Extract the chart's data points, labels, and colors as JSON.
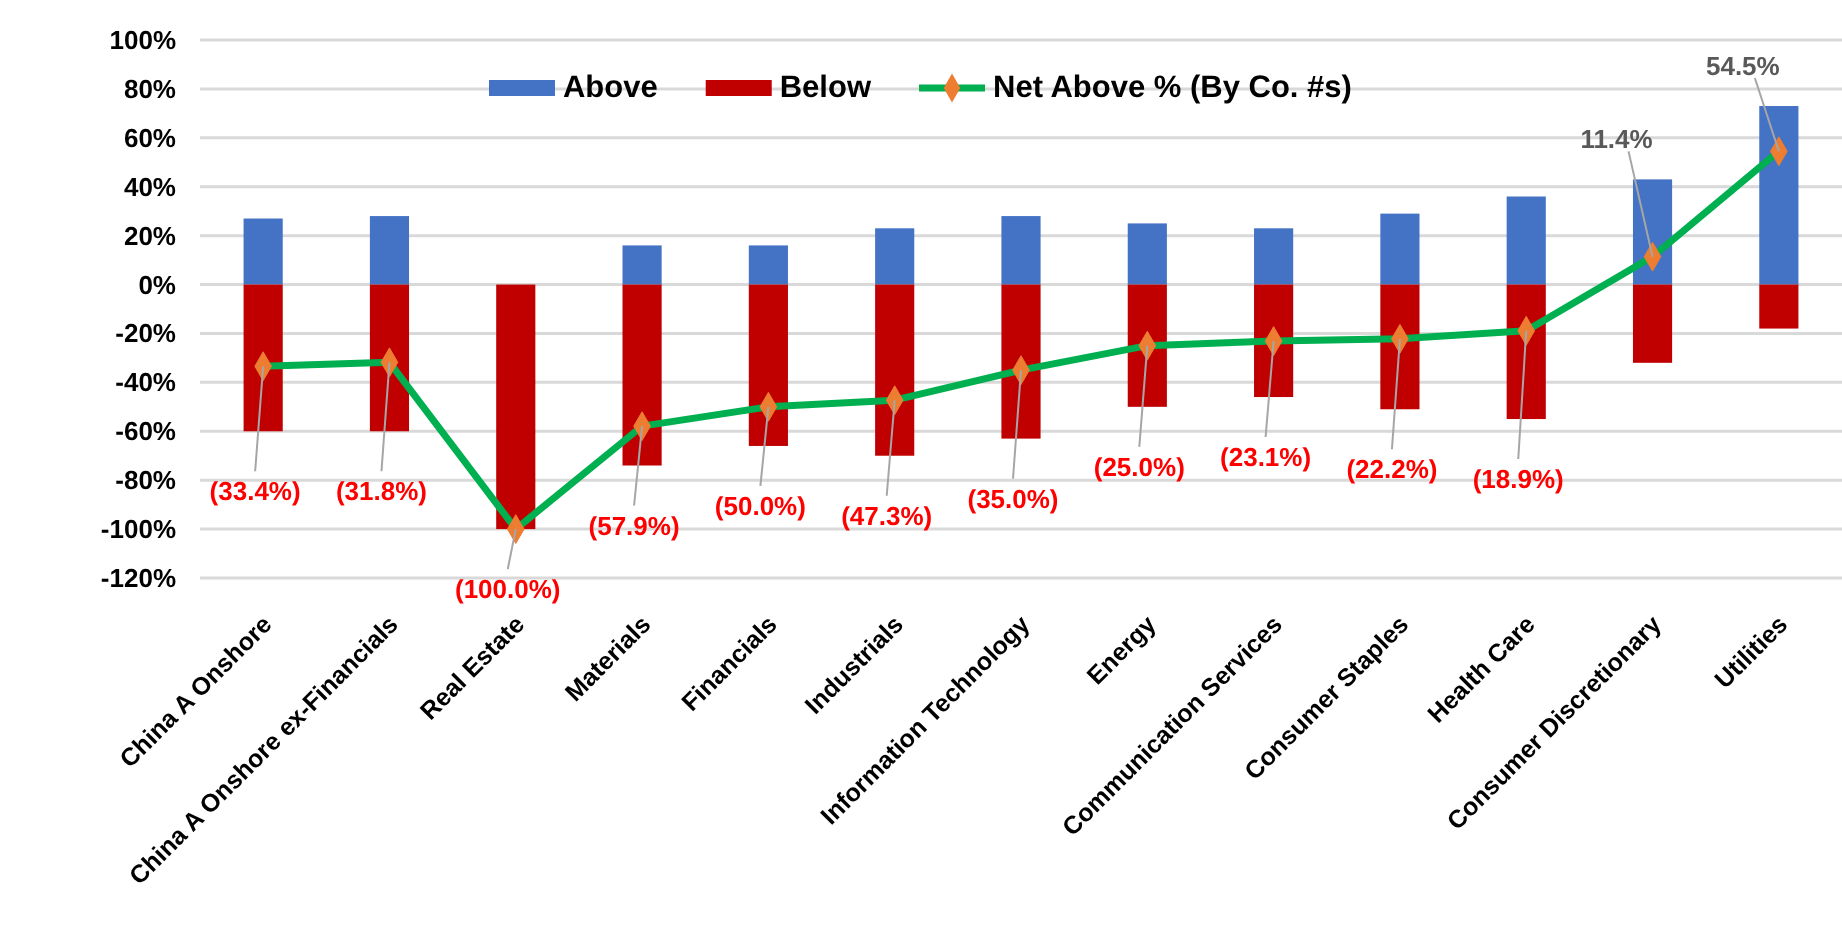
{
  "chart_data": {
    "type": "bar",
    "stacked": true,
    "categories": [
      "China A Onshore",
      "China A Onshore ex-Financials",
      "Real Estate",
      "Materials",
      "Financials",
      "Industrials",
      "Information Technology",
      "Energy",
      "Communication Services",
      "Consumer Staples",
      "Health Care",
      "Consumer Discretionary",
      "Utilities"
    ],
    "series": [
      {
        "name": "Above",
        "color": "#4472c4",
        "values": [
          27,
          28,
          0,
          16,
          16,
          23,
          28,
          25,
          23,
          29,
          36,
          43,
          73
        ]
      },
      {
        "name": "Below",
        "color": "#c00000",
        "values": [
          -60,
          -60,
          -100,
          -74,
          -66,
          -70,
          -63,
          -50,
          -46,
          -51,
          -55,
          -32,
          -18
        ]
      },
      {
        "name": "Net Above % (By Co. #s)",
        "type": "line",
        "color": "#00b050",
        "values": [
          -33.4,
          -31.8,
          -100.0,
          -57.9,
          -50.0,
          -47.3,
          -35.0,
          -25.0,
          -23.1,
          -22.2,
          -18.9,
          11.4,
          54.5
        ],
        "value_labels": [
          "(33.4%)",
          "(31.8%)",
          "(100.0%)",
          "(57.9%)",
          "(50.0%)",
          "(47.3%)",
          "(35.0%)",
          "(25.0%)",
          "(23.1%)",
          "(22.2%)",
          "(18.9%)",
          "11.4%",
          "54.5%"
        ]
      }
    ],
    "ylim": [
      -120,
      100
    ],
    "yticks": [
      {
        "value": -120,
        "label": "-120%"
      },
      {
        "value": -100,
        "label": "-100%"
      },
      {
        "value": -80,
        "label": "-80%"
      },
      {
        "value": -60,
        "label": "-60%"
      },
      {
        "value": -40,
        "label": "-40%"
      },
      {
        "value": -20,
        "label": "-20%"
      },
      {
        "value": 0,
        "label": "0%"
      },
      {
        "value": 20,
        "label": "20%"
      },
      {
        "value": 40,
        "label": "40%"
      },
      {
        "value": 60,
        "label": "60%"
      },
      {
        "value": 80,
        "label": "80%"
      },
      {
        "value": 100,
        "label": "100%"
      }
    ],
    "grid": "y",
    "legend": "top",
    "marker": "diamond"
  }
}
